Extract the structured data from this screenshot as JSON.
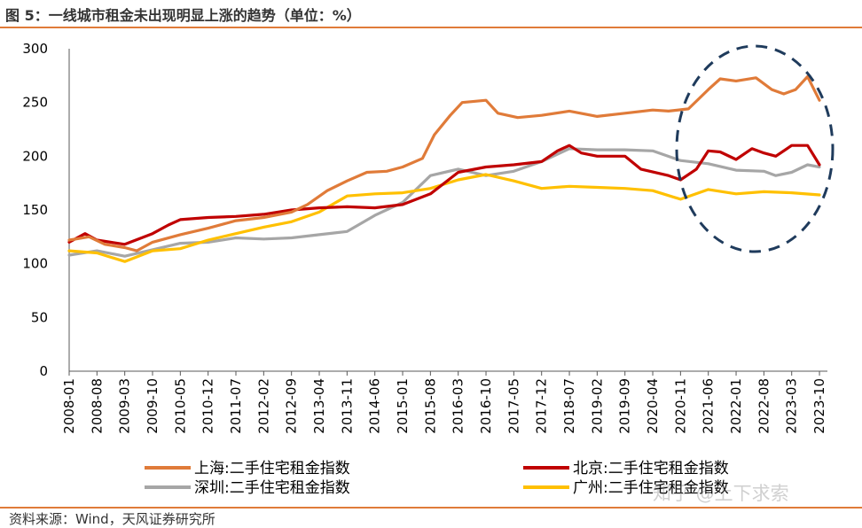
{
  "title": "图 5：一线城市租金未出现明显上涨的趋势（单位：%）",
  "source": "资料来源：Wind，天风证券研究所",
  "watermark": "知乎 @上下求索",
  "chart_data": {
    "type": "line",
    "ylim": [
      0,
      300
    ],
    "yticks": [
      "0",
      "50",
      "100",
      "150",
      "200",
      "250",
      "300"
    ],
    "x_tick_labels": [
      "2008-01",
      "2008-08",
      "2009-03",
      "2009-10",
      "2010-05",
      "2010-12",
      "2011-07",
      "2012-02",
      "2012-09",
      "2013-04",
      "2013-11",
      "2014-06",
      "2015-01",
      "2015-08",
      "2016-03",
      "2016-10",
      "2017-05",
      "2017-12",
      "2018-07",
      "2019-02",
      "2019-09",
      "2020-04",
      "2020-11",
      "2021-06",
      "2022-01",
      "2022-08",
      "2023-03",
      "2023-10"
    ],
    "x_start": "2008-01",
    "x_end": "2023-12",
    "legend_position": "bottom",
    "series": [
      {
        "name": "上海:二手住宅租金指数",
        "color": "#e07b39",
        "points": [
          [
            "2008-01",
            122
          ],
          [
            "2008-06",
            125
          ],
          [
            "2008-10",
            118
          ],
          [
            "2009-03",
            115
          ],
          [
            "2009-06",
            112
          ],
          [
            "2009-10",
            120
          ],
          [
            "2010-05",
            127
          ],
          [
            "2010-12",
            133
          ],
          [
            "2011-07",
            140
          ],
          [
            "2012-02",
            143
          ],
          [
            "2012-09",
            148
          ],
          [
            "2013-01",
            155
          ],
          [
            "2013-06",
            168
          ],
          [
            "2013-11",
            177
          ],
          [
            "2014-04",
            185
          ],
          [
            "2014-09",
            186
          ],
          [
            "2015-01",
            190
          ],
          [
            "2015-06",
            198
          ],
          [
            "2015-09",
            220
          ],
          [
            "2016-01",
            238
          ],
          [
            "2016-04",
            250
          ],
          [
            "2016-10",
            252
          ],
          [
            "2017-01",
            240
          ],
          [
            "2017-06",
            236
          ],
          [
            "2017-12",
            238
          ],
          [
            "2018-07",
            242
          ],
          [
            "2019-02",
            237
          ],
          [
            "2019-09",
            240
          ],
          [
            "2020-04",
            243
          ],
          [
            "2020-08",
            242
          ],
          [
            "2021-01",
            244
          ],
          [
            "2021-06",
            262
          ],
          [
            "2021-09",
            272
          ],
          [
            "2022-01",
            270
          ],
          [
            "2022-06",
            273
          ],
          [
            "2022-10",
            262
          ],
          [
            "2023-01",
            258
          ],
          [
            "2023-04",
            262
          ],
          [
            "2023-07",
            274
          ],
          [
            "2023-10",
            252
          ]
        ]
      },
      {
        "name": "北京:二手住宅租金指数",
        "color": "#c00000",
        "points": [
          [
            "2008-01",
            120
          ],
          [
            "2008-05",
            128
          ],
          [
            "2008-08",
            122
          ],
          [
            "2009-03",
            118
          ],
          [
            "2009-10",
            128
          ],
          [
            "2010-02",
            136
          ],
          [
            "2010-05",
            141
          ],
          [
            "2010-12",
            143
          ],
          [
            "2011-07",
            144
          ],
          [
            "2012-02",
            146
          ],
          [
            "2012-09",
            150
          ],
          [
            "2013-04",
            152
          ],
          [
            "2013-11",
            153
          ],
          [
            "2014-06",
            152
          ],
          [
            "2015-01",
            155
          ],
          [
            "2015-08",
            165
          ],
          [
            "2016-03",
            185
          ],
          [
            "2016-10",
            190
          ],
          [
            "2017-05",
            192
          ],
          [
            "2017-12",
            195
          ],
          [
            "2018-04",
            205
          ],
          [
            "2018-07",
            210
          ],
          [
            "2018-10",
            203
          ],
          [
            "2019-02",
            200
          ],
          [
            "2019-09",
            200
          ],
          [
            "2020-01",
            188
          ],
          [
            "2020-08",
            182
          ],
          [
            "2020-11",
            178
          ],
          [
            "2021-03",
            188
          ],
          [
            "2021-06",
            205
          ],
          [
            "2021-09",
            204
          ],
          [
            "2022-01",
            197
          ],
          [
            "2022-05",
            207
          ],
          [
            "2022-08",
            203
          ],
          [
            "2022-11",
            200
          ],
          [
            "2023-03",
            210
          ],
          [
            "2023-07",
            210
          ],
          [
            "2023-10",
            192
          ]
        ]
      },
      {
        "name": "深圳:二手住宅租金指数",
        "color": "#a6a6a6",
        "points": [
          [
            "2008-01",
            108
          ],
          [
            "2008-08",
            112
          ],
          [
            "2009-03",
            107
          ],
          [
            "2009-10",
            113
          ],
          [
            "2010-05",
            119
          ],
          [
            "2010-12",
            120
          ],
          [
            "2011-07",
            124
          ],
          [
            "2012-02",
            123
          ],
          [
            "2012-09",
            124
          ],
          [
            "2013-04",
            127
          ],
          [
            "2013-11",
            130
          ],
          [
            "2014-06",
            145
          ],
          [
            "2015-01",
            157
          ],
          [
            "2015-08",
            182
          ],
          [
            "2016-03",
            188
          ],
          [
            "2016-10",
            182
          ],
          [
            "2017-05",
            186
          ],
          [
            "2017-12",
            195
          ],
          [
            "2018-07",
            207
          ],
          [
            "2019-02",
            206
          ],
          [
            "2019-09",
            206
          ],
          [
            "2020-04",
            205
          ],
          [
            "2020-11",
            196
          ],
          [
            "2021-06",
            193
          ],
          [
            "2022-01",
            187
          ],
          [
            "2022-08",
            186
          ],
          [
            "2022-11",
            182
          ],
          [
            "2023-03",
            185
          ],
          [
            "2023-07",
            192
          ],
          [
            "2023-10",
            190
          ]
        ]
      },
      {
        "name": "广州:二手住宅租金指数",
        "color": "#ffc000",
        "points": [
          [
            "2008-01",
            112
          ],
          [
            "2008-08",
            110
          ],
          [
            "2009-03",
            102
          ],
          [
            "2009-10",
            112
          ],
          [
            "2010-05",
            114
          ],
          [
            "2010-12",
            122
          ],
          [
            "2011-07",
            128
          ],
          [
            "2012-02",
            134
          ],
          [
            "2012-09",
            139
          ],
          [
            "2013-04",
            148
          ],
          [
            "2013-11",
            163
          ],
          [
            "2014-06",
            165
          ],
          [
            "2015-01",
            166
          ],
          [
            "2015-08",
            170
          ],
          [
            "2016-03",
            178
          ],
          [
            "2016-10",
            183
          ],
          [
            "2017-05",
            177
          ],
          [
            "2017-12",
            170
          ],
          [
            "2018-07",
            172
          ],
          [
            "2019-02",
            171
          ],
          [
            "2019-09",
            170
          ],
          [
            "2020-04",
            168
          ],
          [
            "2020-11",
            160
          ],
          [
            "2021-06",
            169
          ],
          [
            "2022-01",
            165
          ],
          [
            "2022-08",
            167
          ],
          [
            "2023-03",
            166
          ],
          [
            "2023-10",
            164
          ]
        ]
      }
    ]
  }
}
